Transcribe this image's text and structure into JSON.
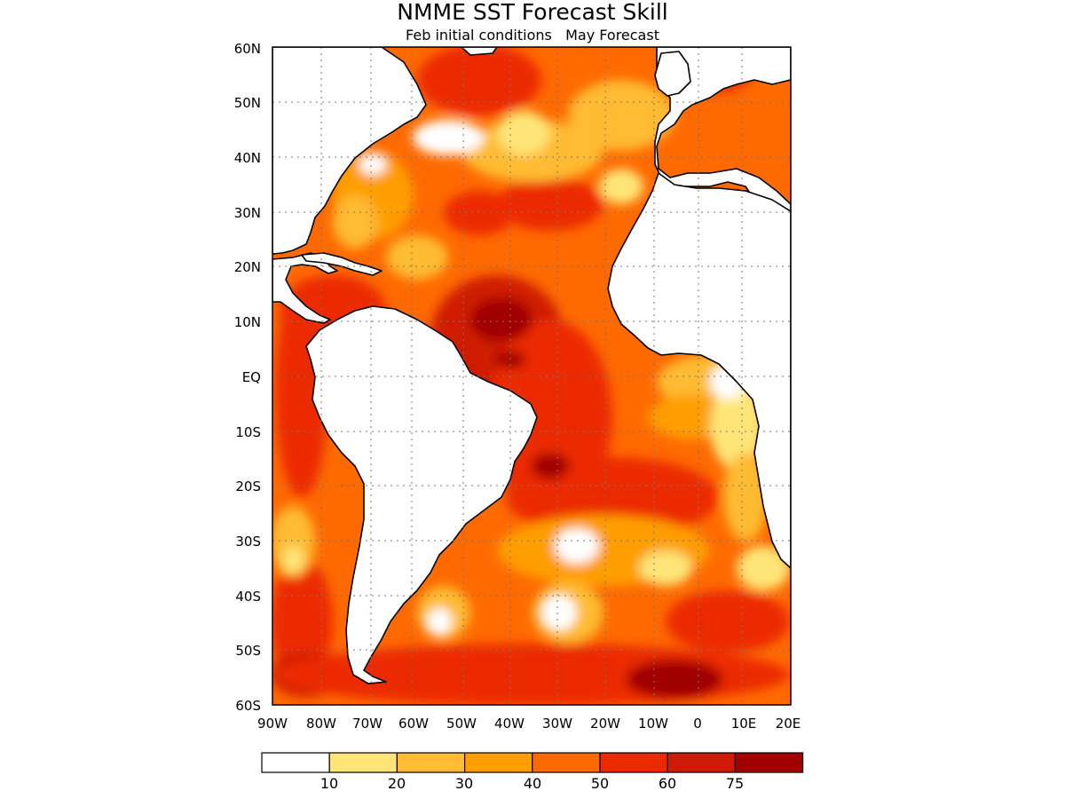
{
  "title": "NMME SST Forecast Skill",
  "subtitle": "Feb initial conditions   May Forecast",
  "map": {
    "lon_range": [
      -90,
      20
    ],
    "lat_range": [
      -60,
      60
    ],
    "lat_labels": [
      "60N",
      "50N",
      "40N",
      "30N",
      "20N",
      "10N",
      "EQ",
      "10S",
      "20S",
      "30S",
      "40S",
      "50S",
      "60S"
    ],
    "lon_labels": [
      "90W",
      "80W",
      "70W",
      "60W",
      "50W",
      "40W",
      "30W",
      "20W",
      "10W",
      "0",
      "10E",
      "20E"
    ],
    "gridlines": "dotted"
  },
  "colorbar": {
    "labels": [
      "10",
      "20",
      "30",
      "40",
      "50",
      "60",
      "75"
    ],
    "colors": [
      "#ffffff",
      "#ffe578",
      "#ffbb33",
      "#ff9e00",
      "#ff6a00",
      "#ec2a00",
      "#cf1a06",
      "#a10000"
    ]
  }
}
